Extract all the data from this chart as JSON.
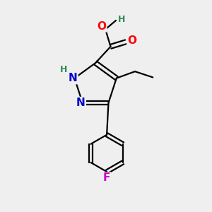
{
  "bg_color": "#efefef",
  "bond_color": "#000000",
  "atom_colors": {
    "N": "#0000cc",
    "O": "#ff0000",
    "F": "#cc00cc",
    "H_label": "#2e8b57",
    "C": "#000000"
  },
  "figsize": [
    3.0,
    3.0
  ],
  "dpi": 100
}
